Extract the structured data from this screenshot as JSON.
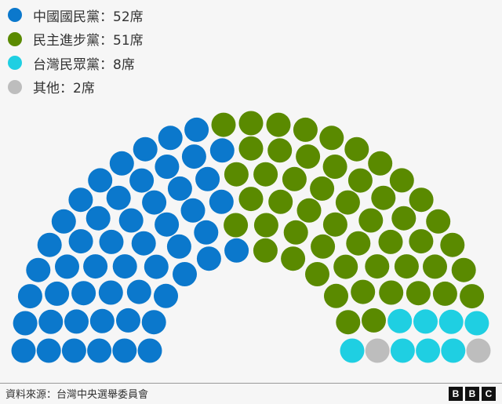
{
  "chart_data": {
    "type": "parliament",
    "total_seats": 113,
    "series": [
      {
        "name": "中國國民黨",
        "label": "中國國民黨：52席",
        "value": 52,
        "color": "#0b78cc"
      },
      {
        "name": "民主進步黨",
        "label": "民主進步黨：51席",
        "value": 51,
        "color": "#5a8a00"
      },
      {
        "name": "台灣民眾黨",
        "label": "台灣民眾黨：8席",
        "value": 8,
        "color": "#1fcfe2"
      },
      {
        "name": "其他",
        "label": "其他：2席",
        "value": 2,
        "color": "#bdbdbd"
      }
    ],
    "legend_position": "top-left"
  },
  "footer": {
    "source": "資料來源：台灣中央選舉委員會",
    "logo": [
      "B",
      "B",
      "C"
    ]
  }
}
